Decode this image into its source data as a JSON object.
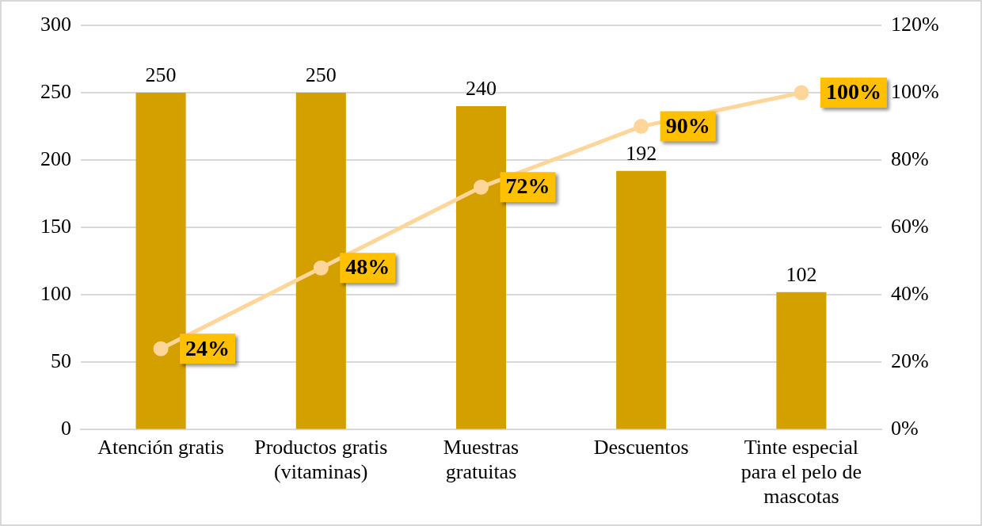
{
  "chart_data": {
    "type": "bar",
    "categories": [
      "Atención gratis",
      "Productos gratis (vitaminas)",
      "Muestras gratuitas",
      "Descuentos",
      "Tinte especial para el pelo de mascotas"
    ],
    "series": [
      {
        "color": "#d4a000",
        "values": [
          250,
          250,
          240,
          192,
          102
        ],
        "value_labels": [
          "250",
          "250",
          "240",
          "192",
          "102"
        ]
      },
      {
        "type": "line",
        "axis": "y2",
        "color": "#ffd699",
        "values": [
          24,
          48,
          72,
          90,
          100
        ],
        "value_labels": [
          "24%",
          "48%",
          "72%",
          "90%",
          "100%"
        ]
      }
    ],
    "ylim": [
      0,
      300
    ],
    "yticks": [
      0,
      50,
      100,
      150,
      200,
      250,
      300
    ],
    "y2lim": [
      0,
      120
    ],
    "y2ticks": [
      {
        "value": 0,
        "label": "0%"
      },
      {
        "value": 20,
        "label": "20%"
      },
      {
        "value": 40,
        "label": "40%"
      },
      {
        "value": 60,
        "label": "60%"
      },
      {
        "value": 80,
        "label": "80%"
      },
      {
        "value": 100,
        "label": "100%"
      },
      {
        "value": 120,
        "label": "120%"
      }
    ],
    "grid": "y",
    "marker": "circle",
    "line_style": "solid"
  }
}
